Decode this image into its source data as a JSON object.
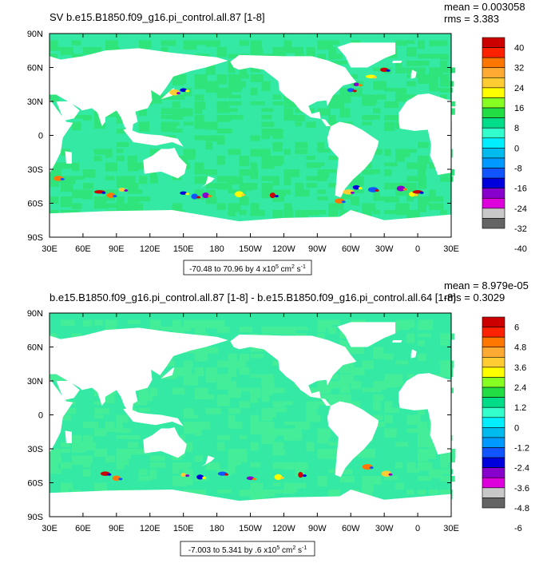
{
  "chart_data": [
    {
      "type": "heatmap",
      "title": "SV b.e15.B1850.f09_g16.pi_control.all.87 [1-8]",
      "stats": [
        "mean = 0.003058",
        "rms = 3.383"
      ],
      "x_ticks": [
        "30E",
        "60E",
        "90E",
        "120E",
        "150E",
        "180",
        "150W",
        "120W",
        "90W",
        "60W",
        "30W",
        "0",
        "30E"
      ],
      "y_ticks": [
        "90N",
        "60N",
        "30N",
        "0",
        "30S",
        "60S",
        "90S"
      ],
      "xlim": [
        30,
        390
      ],
      "ylim": [
        -90,
        90
      ],
      "footer_main": "-70.48 to 70.96 by 4 x10",
      "footer_exp": "5",
      "footer_unit": " cm",
      "footer_unit_exp": "2",
      "footer_s": " s",
      "footer_s_exp": "-1",
      "colorbar_labels": [
        "40",
        "32",
        "24",
        "16",
        "8",
        "0",
        "-8",
        "-16",
        "-24",
        "-32",
        "-40"
      ],
      "range": [
        -70.48,
        70.96
      ],
      "contour_interval": 4,
      "colors": [
        "#cc0000",
        "#ff2200",
        "#ff7700",
        "#ffaa33",
        "#ffcc33",
        "#ffff00",
        "#88ff22",
        "#22dd44",
        "#00dd88",
        "#33ffcc",
        "#00eeff",
        "#00bbee",
        "#0099ff",
        "#1155ff",
        "#0000dd",
        "#8800cc",
        "#dd00dd",
        "#c8c8c8",
        "#646464"
      ]
    },
    {
      "type": "heatmap",
      "title": "b.e15.B1850.f09_g16.pi_control.all.87 [1-8] - b.e15.B1850.f09_g16.pi_control.all.64 [1-8]",
      "stats": [
        "mean = 8.979e-05",
        "rms = 0.3029"
      ],
      "x_ticks": [
        "30E",
        "60E",
        "90E",
        "120E",
        "150E",
        "180",
        "150W",
        "120W",
        "90W",
        "60W",
        "30W",
        "0",
        "30E"
      ],
      "y_ticks": [
        "90N",
        "60N",
        "30N",
        "0",
        "30S",
        "60S",
        "90S"
      ],
      "xlim": [
        30,
        390
      ],
      "ylim": [
        -90,
        90
      ],
      "footer_main": "-7.003 to 5.341 by .6 x10",
      "footer_exp": "5",
      "footer_unit": " cm",
      "footer_unit_exp": "2",
      "footer_s": " s",
      "footer_s_exp": "-1",
      "colorbar_labels": [
        "6",
        "4.8",
        "3.6",
        "2.4",
        "1.2",
        "0",
        "-1.2",
        "-2.4",
        "-3.6",
        "-4.8",
        "-6"
      ],
      "range": [
        -7.003,
        5.341
      ],
      "contour_interval": 0.6,
      "colors": [
        "#cc0000",
        "#ff2200",
        "#ff7700",
        "#ffaa33",
        "#ffcc33",
        "#ffff00",
        "#88ff22",
        "#22dd44",
        "#00dd88",
        "#33ffcc",
        "#00eeff",
        "#00bbee",
        "#0099ff",
        "#1155ff",
        "#0000dd",
        "#8800cc",
        "#dd00dd",
        "#c8c8c8",
        "#646464"
      ]
    }
  ],
  "colors": {
    "ocean_fill": "#33e9a4",
    "ocean_alt": "#2fe47a",
    "land": "#ffffff",
    "frame": "#000000"
  }
}
